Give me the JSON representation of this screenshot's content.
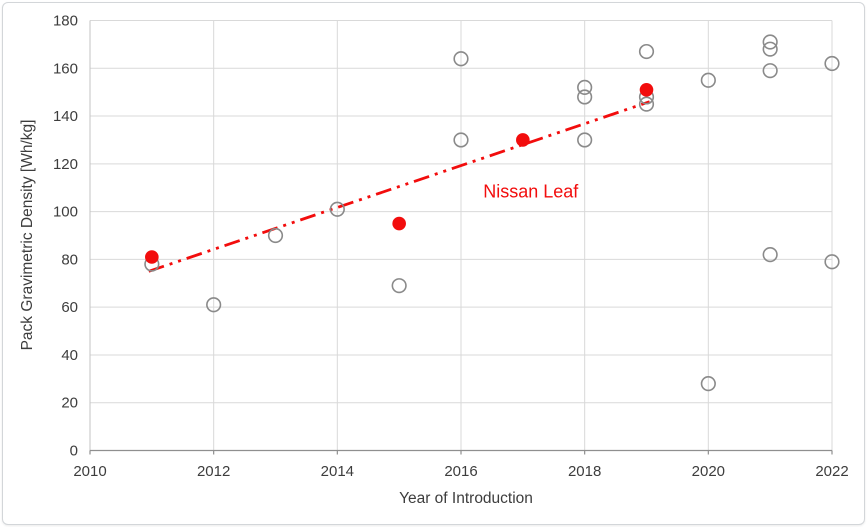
{
  "figure": {
    "background": "#ffffff",
    "frame_border_color": "#d3d6d9"
  },
  "chart_data": {
    "type": "scatter",
    "title": "",
    "xlabel": "Year of Introduction",
    "ylabel": "Pack Gravimetric Density [Wh/kg]",
    "xlim": [
      2010,
      2022
    ],
    "ylim": [
      0,
      180
    ],
    "x_ticks": [
      2010,
      2012,
      2014,
      2016,
      2018,
      2020,
      2022
    ],
    "y_ticks": [
      0,
      20,
      40,
      60,
      80,
      100,
      120,
      140,
      160,
      180
    ],
    "grid": true,
    "legend": "none",
    "colors": {
      "gridline": "#d9d9d9",
      "axis": "#8f8f8f",
      "axis_left": "#c3c3c3",
      "text": "#3d3d3d",
      "red": "#f20d0d",
      "gray_marker": "#8a8a8a"
    },
    "series": [
      {
        "id": "gray-open-circles",
        "name": "open gray circles (other EV packs)",
        "marker": "open-circle",
        "color": "#8a8a8a",
        "points": [
          [
            2011,
            78
          ],
          [
            2012,
            61
          ],
          [
            2013,
            90
          ],
          [
            2014,
            101
          ],
          [
            2015,
            69
          ],
          [
            2016,
            164
          ],
          [
            2016,
            130
          ],
          [
            2018,
            152
          ],
          [
            2018,
            148
          ],
          [
            2018,
            130
          ],
          [
            2019,
            167
          ],
          [
            2019,
            148
          ],
          [
            2019,
            145
          ],
          [
            2020,
            155
          ],
          [
            2020,
            28
          ],
          [
            2021,
            171
          ],
          [
            2021,
            168
          ],
          [
            2021,
            159
          ],
          [
            2021,
            82
          ],
          [
            2022,
            162
          ],
          [
            2022,
            79
          ]
        ]
      },
      {
        "id": "nissan-leaf",
        "name": "Nissan Leaf",
        "marker": "filled-circle",
        "color": "#f20d0d",
        "points": [
          [
            2011,
            81
          ],
          [
            2015,
            95
          ],
          [
            2017,
            130
          ],
          [
            2019,
            151
          ]
        ]
      }
    ],
    "trendline": {
      "style": "long-dash-dot-dot",
      "color": "#f20d0d",
      "from": [
        2010.95,
        75
      ],
      "to": [
        2019.05,
        146
      ]
    },
    "annotation": {
      "text": "Nissan Leaf",
      "x": 2016.36,
      "y": 106,
      "color": "#f20d0d"
    }
  }
}
